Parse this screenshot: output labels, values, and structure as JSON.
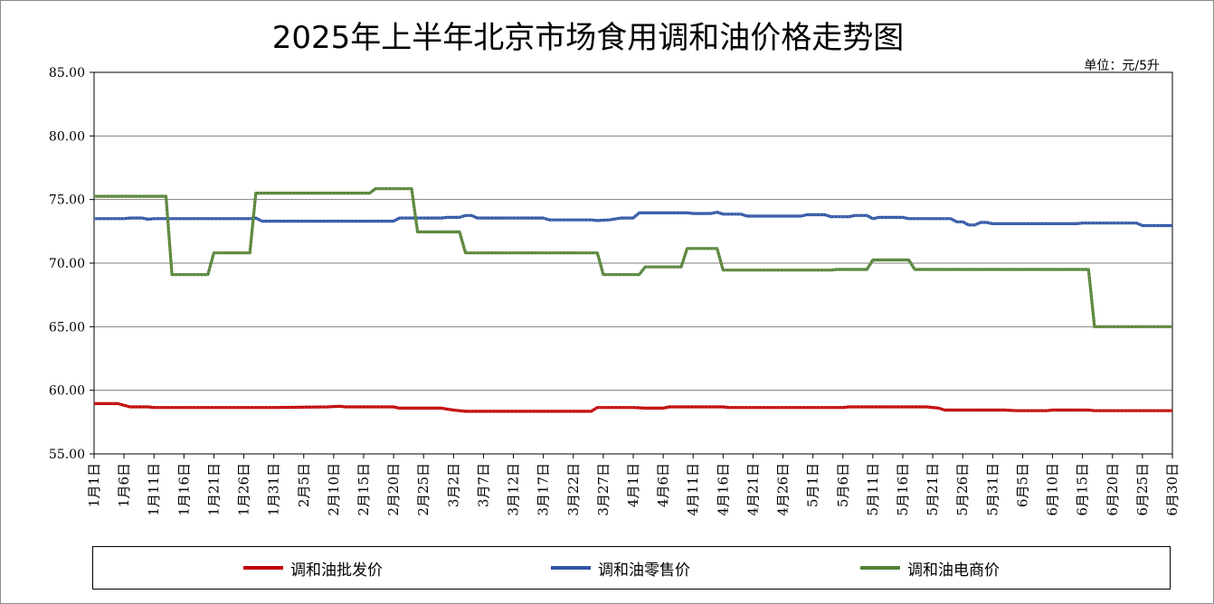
{
  "chart_data": {
    "type": "line",
    "title": "2025年上半年北京市场食用调和油价格走势图",
    "unit": "单位：元/5升",
    "ylim": [
      55,
      85
    ],
    "yticks": [
      "85.00",
      "80.00",
      "75.00",
      "70.00",
      "65.00",
      "60.00",
      "55.00"
    ],
    "x_start": "1月1日",
    "x_end": "6月30日",
    "x_tick_labels": [
      "1月1日",
      "1月6日",
      "1月11日",
      "1月16日",
      "1月21日",
      "1月26日",
      "1月31日",
      "2月5日",
      "2月10日",
      "2月15日",
      "2月20日",
      "2月25日",
      "3月2日",
      "3月7日",
      "3月12日",
      "3月17日",
      "3月22日",
      "3月27日",
      "4月1日",
      "4月6日",
      "4月11日",
      "4月16日",
      "4月21日",
      "4月26日",
      "5月1日",
      "5月6日",
      "5月11日",
      "5月16日",
      "5月21日",
      "5月26日",
      "5月31日",
      "6月5日",
      "6月10日",
      "6月15日",
      "6月20日",
      "6月25日",
      "6月30日"
    ],
    "grid": true,
    "legend_position": "bottom",
    "series": [
      {
        "name": "调和油批发价",
        "color": "#c00000",
        "points": [
          [
            "1月1日",
            58.95
          ],
          [
            "1月5日",
            58.95
          ],
          [
            "1月7日",
            58.7
          ],
          [
            "1月10日",
            58.7
          ],
          [
            "1月11日",
            58.65
          ],
          [
            "1月31日",
            58.65
          ],
          [
            "2月9日",
            58.7
          ],
          [
            "2月11日",
            58.75
          ],
          [
            "2月12日",
            58.7
          ],
          [
            "2月20日",
            58.7
          ],
          [
            "2月21日",
            58.6
          ],
          [
            "2月28日",
            58.6
          ],
          [
            "3月2日",
            58.45
          ],
          [
            "3月4日",
            58.35
          ],
          [
            "3月10日",
            58.35
          ],
          [
            "3月25日",
            58.35
          ],
          [
            "3月26日",
            58.65
          ],
          [
            "4月1日",
            58.65
          ],
          [
            "4月3日",
            58.6
          ],
          [
            "4月6日",
            58.6
          ],
          [
            "4月7日",
            58.7
          ],
          [
            "4月16日",
            58.7
          ],
          [
            "4月17日",
            58.65
          ],
          [
            "5月6日",
            58.65
          ],
          [
            "5月7日",
            58.7
          ],
          [
            "5月20日",
            58.7
          ],
          [
            "5月22日",
            58.6
          ],
          [
            "5月23日",
            58.45
          ],
          [
            "6月2日",
            58.45
          ],
          [
            "6月4日",
            58.4
          ],
          [
            "6月9日",
            58.4
          ],
          [
            "6月10日",
            58.45
          ],
          [
            "6月16日",
            58.45
          ],
          [
            "6月17日",
            58.4
          ],
          [
            "6月30日",
            58.4
          ]
        ]
      },
      {
        "name": "调和油零售价",
        "color": "#2f55a4",
        "points": [
          [
            "1月1日",
            73.5
          ],
          [
            "1月6日",
            73.5
          ],
          [
            "1月7日",
            73.55
          ],
          [
            "1月9日",
            73.55
          ],
          [
            "1月10日",
            73.45
          ],
          [
            "1月11日",
            73.5
          ],
          [
            "1月27日",
            73.5
          ],
          [
            "1月28日",
            73.55
          ],
          [
            "1月29日",
            73.3
          ],
          [
            "2月20日",
            73.3
          ],
          [
            "2月21日",
            73.55
          ],
          [
            "2月28日",
            73.55
          ],
          [
            "3月1日",
            73.6
          ],
          [
            "3月3日",
            73.6
          ],
          [
            "3月4日",
            73.75
          ],
          [
            "3月5日",
            73.75
          ],
          [
            "3月6日",
            73.55
          ],
          [
            "3月17日",
            73.55
          ],
          [
            "3月18日",
            73.4
          ],
          [
            "3月25日",
            73.4
          ],
          [
            "3月26日",
            73.35
          ],
          [
            "3月28日",
            73.4
          ],
          [
            "3月30日",
            73.55
          ],
          [
            "4月1日",
            73.55
          ],
          [
            "4月2日",
            73.95
          ],
          [
            "4月10日",
            73.95
          ],
          [
            "4月11日",
            73.9
          ],
          [
            "4月14日",
            73.9
          ],
          [
            "4月15日",
            74.0
          ],
          [
            "4月16日",
            73.85
          ],
          [
            "4月19日",
            73.85
          ],
          [
            "4月20日",
            73.7
          ],
          [
            "4月29日",
            73.7
          ],
          [
            "4月30日",
            73.8
          ],
          [
            "5月3日",
            73.8
          ],
          [
            "5月4日",
            73.65
          ],
          [
            "5月7日",
            73.65
          ],
          [
            "5月8日",
            73.75
          ],
          [
            "5月10日",
            73.75
          ],
          [
            "5月11日",
            73.5
          ],
          [
            "5月12日",
            73.6
          ],
          [
            "5月16日",
            73.6
          ],
          [
            "5月17日",
            73.5
          ],
          [
            "5月24日",
            73.5
          ],
          [
            "5月25日",
            73.25
          ],
          [
            "5月26日",
            73.25
          ],
          [
            "5月27日",
            73.0
          ],
          [
            "5月28日",
            73.0
          ],
          [
            "5月29日",
            73.2
          ],
          [
            "5月30日",
            73.2
          ],
          [
            "5月31日",
            73.1
          ],
          [
            "6月14日",
            73.1
          ],
          [
            "6月15日",
            73.15
          ],
          [
            "6月24日",
            73.15
          ],
          [
            "6月25日",
            72.95
          ],
          [
            "6月30日",
            72.95
          ]
        ]
      },
      {
        "name": "调和油电商价",
        "color": "#548235",
        "points": [
          [
            "1月1日",
            75.25
          ],
          [
            "1月13日",
            75.25
          ],
          [
            "1月14日",
            69.1
          ],
          [
            "1月20日",
            69.1
          ],
          [
            "1月21日",
            70.8
          ],
          [
            "1月27日",
            70.8
          ],
          [
            "1月28日",
            75.5
          ],
          [
            "2月16日",
            75.5
          ],
          [
            "2月17日",
            75.85
          ],
          [
            "2月23日",
            75.85
          ],
          [
            "2月24日",
            72.45
          ],
          [
            "3月3日",
            72.45
          ],
          [
            "3月4日",
            70.8
          ],
          [
            "3月26日",
            70.8
          ],
          [
            "3月27日",
            69.1
          ],
          [
            "4月2日",
            69.1
          ],
          [
            "4月3日",
            69.7
          ],
          [
            "4月9日",
            69.7
          ],
          [
            "4月10日",
            71.15
          ],
          [
            "4月15日",
            71.15
          ],
          [
            "4月16日",
            69.45
          ],
          [
            "5月4日",
            69.45
          ],
          [
            "5月5日",
            69.5
          ],
          [
            "5月10日",
            69.5
          ],
          [
            "5月11日",
            70.25
          ],
          [
            "5月17日",
            70.25
          ],
          [
            "5月18日",
            69.5
          ],
          [
            "6月16日",
            69.5
          ],
          [
            "6月17日",
            65.0
          ],
          [
            "6月30日",
            65.0
          ]
        ]
      }
    ]
  }
}
